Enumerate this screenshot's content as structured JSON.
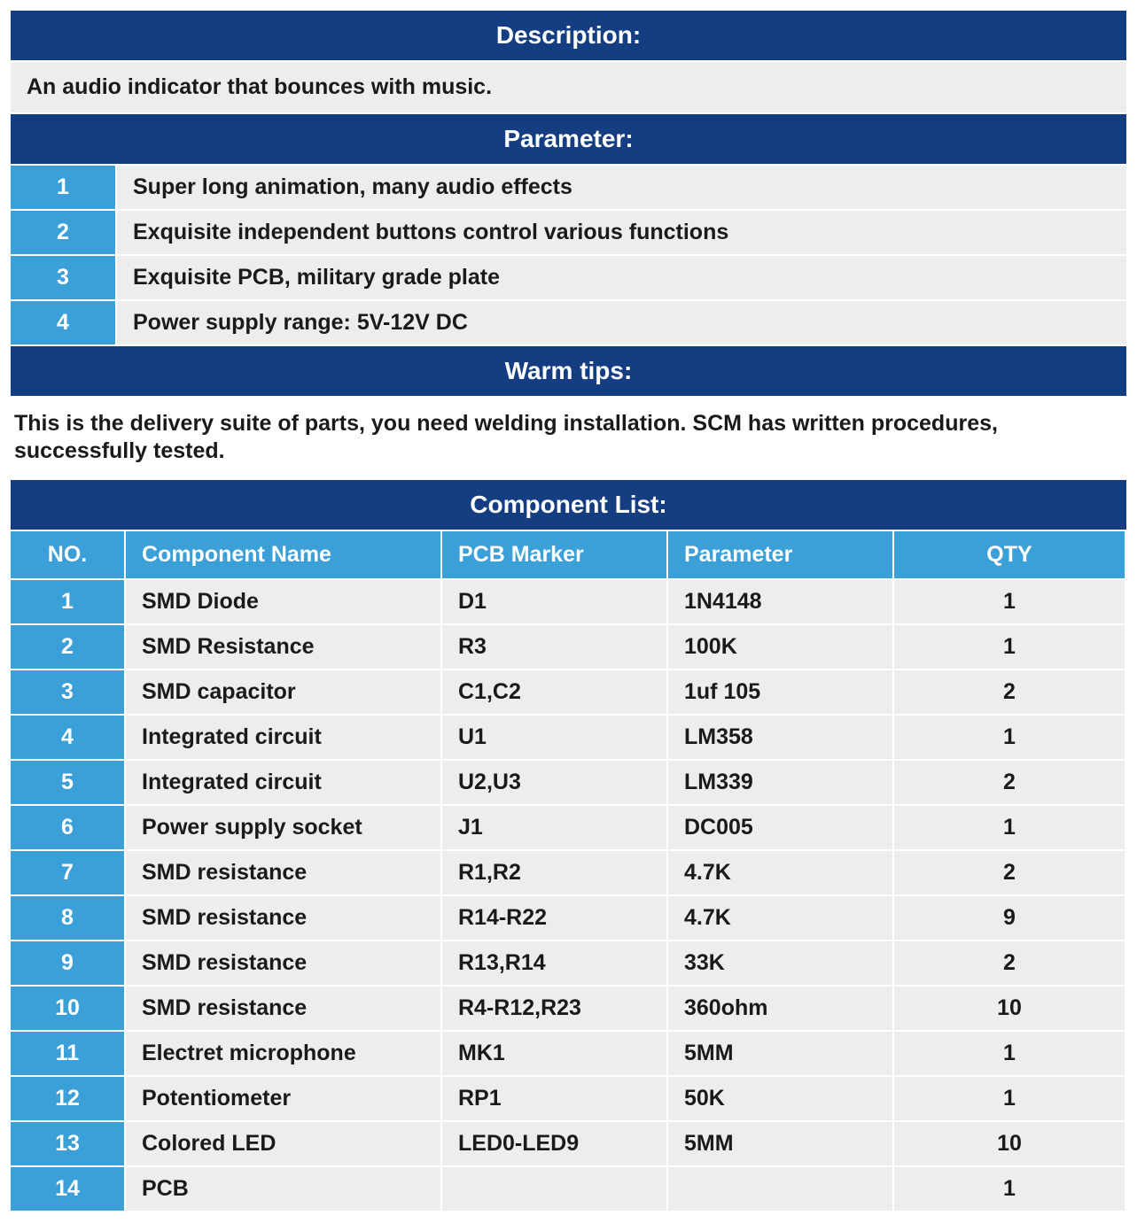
{
  "colors": {
    "header_bg": "#153e82",
    "accent_bg": "#3b9fd8",
    "row_bg": "#eceded",
    "header_text": "#ffffff",
    "body_text": "#1a1a1a"
  },
  "typography": {
    "header_fontsize_pt": 21,
    "body_fontsize_pt": 19,
    "weight_header": 700,
    "weight_body": 600
  },
  "description": {
    "header": "Description:",
    "text": "An audio indicator that bounces with music."
  },
  "parameter": {
    "header": "Parameter:",
    "items": [
      {
        "num": "1",
        "text": "Super long animation, many audio effects"
      },
      {
        "num": "2",
        "text": "Exquisite independent buttons control various functions"
      },
      {
        "num": "3",
        "text": "Exquisite PCB, military grade plate"
      },
      {
        "num": "4",
        "text": "Power supply range: 5V-12V DC"
      }
    ]
  },
  "warm_tips": {
    "header": "Warm tips:",
    "text": "This is the delivery suite of parts, you need welding installation. SCM has written procedures, successfully tested."
  },
  "component_list": {
    "header": "Component List:",
    "columns": {
      "no": "NO.",
      "name": "Component Name",
      "pcb": "PCB Marker",
      "param": "Parameter",
      "qty": "QTY"
    },
    "rows": [
      {
        "no": "1",
        "name": "SMD Diode",
        "pcb": "D1",
        "param": "1N4148",
        "qty": "1"
      },
      {
        "no": "2",
        "name": "SMD Resistance",
        "pcb": "R3",
        "param": "100K",
        "qty": "1"
      },
      {
        "no": "3",
        "name": "SMD capacitor",
        "pcb": "C1,C2",
        "param": "1uf 105",
        "qty": "2"
      },
      {
        "no": "4",
        "name": "Integrated circuit",
        "pcb": "U1",
        "param": "LM358",
        "qty": "1"
      },
      {
        "no": "5",
        "name": "Integrated circuit",
        "pcb": "U2,U3",
        "param": "LM339",
        "qty": "2"
      },
      {
        "no": "6",
        "name": "Power supply socket",
        "pcb": "J1",
        "param": "DC005",
        "qty": "1"
      },
      {
        "no": "7",
        "name": "SMD resistance",
        "pcb": "R1,R2",
        "param": "4.7K",
        "qty": "2"
      },
      {
        "no": "8",
        "name": "SMD resistance",
        "pcb": "R14-R22",
        "param": "4.7K",
        "qty": "9"
      },
      {
        "no": "9",
        "name": "SMD resistance",
        "pcb": "R13,R14",
        "param": "33K",
        "qty": "2"
      },
      {
        "no": "10",
        "name": "SMD resistance",
        "pcb": "R4-R12,R23",
        "param": "360ohm",
        "qty": "10"
      },
      {
        "no": "11",
        "name": "Electret microphone",
        "pcb": "MK1",
        "param": "5MM",
        "qty": "1"
      },
      {
        "no": "12",
        "name": "Potentiometer",
        "pcb": "RP1",
        "param": "50K",
        "qty": "1"
      },
      {
        "no": "13",
        "name": "Colored LED",
        "pcb": "LED0-LED9",
        "param": "5MM",
        "qty": "10"
      },
      {
        "no": "14",
        "name": "PCB",
        "pcb": "",
        "param": "",
        "qty": "1"
      }
    ]
  }
}
